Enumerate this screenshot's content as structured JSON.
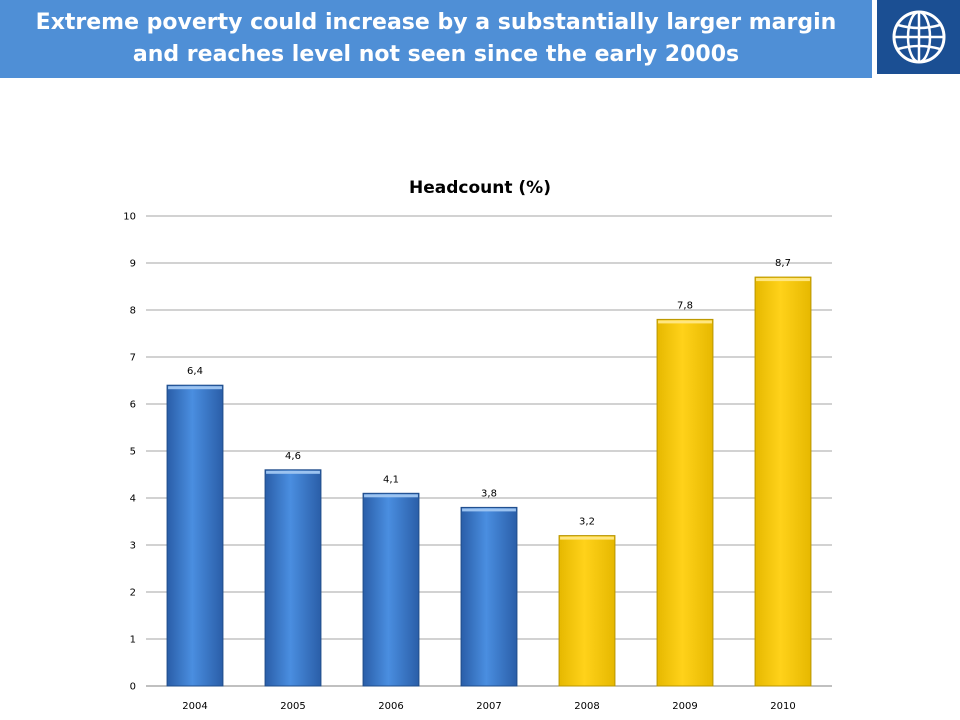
{
  "header": {
    "title_line1": "Extreme poverty could increase by a substantially larger margin",
    "title_line2": "and reaches level not seen since the early 2000s"
  },
  "logo": {
    "icon": "globe-icon",
    "bg_color": "#1b4f93"
  },
  "colors": {
    "banner": "#4f8fd6",
    "actual_bar": "#3b7bd4",
    "projected_bar": "#ffcc00"
  },
  "chart_data": {
    "type": "bar",
    "title": "Headcount (%)",
    "categories": [
      "2004",
      "2005",
      "2006",
      "2007",
      "2008",
      "2009",
      "2010"
    ],
    "values": [
      6.4,
      4.6,
      4.1,
      3.8,
      3.2,
      7.8,
      8.7
    ],
    "data_labels": [
      "6,4",
      "4,6",
      "4,1",
      "3,8",
      "3,2",
      "7,8",
      "8,7"
    ],
    "bar_colors": [
      "#3b7bd4",
      "#3b7bd4",
      "#3b7bd4",
      "#3b7bd4",
      "#ffcc00",
      "#ffcc00",
      "#ffcc00"
    ],
    "y_ticks": [
      "0",
      "1",
      "2",
      "3",
      "4",
      "5",
      "6",
      "7",
      "8",
      "9",
      "10"
    ],
    "ylim": [
      0,
      10
    ],
    "grid": true,
    "legend": "none"
  }
}
